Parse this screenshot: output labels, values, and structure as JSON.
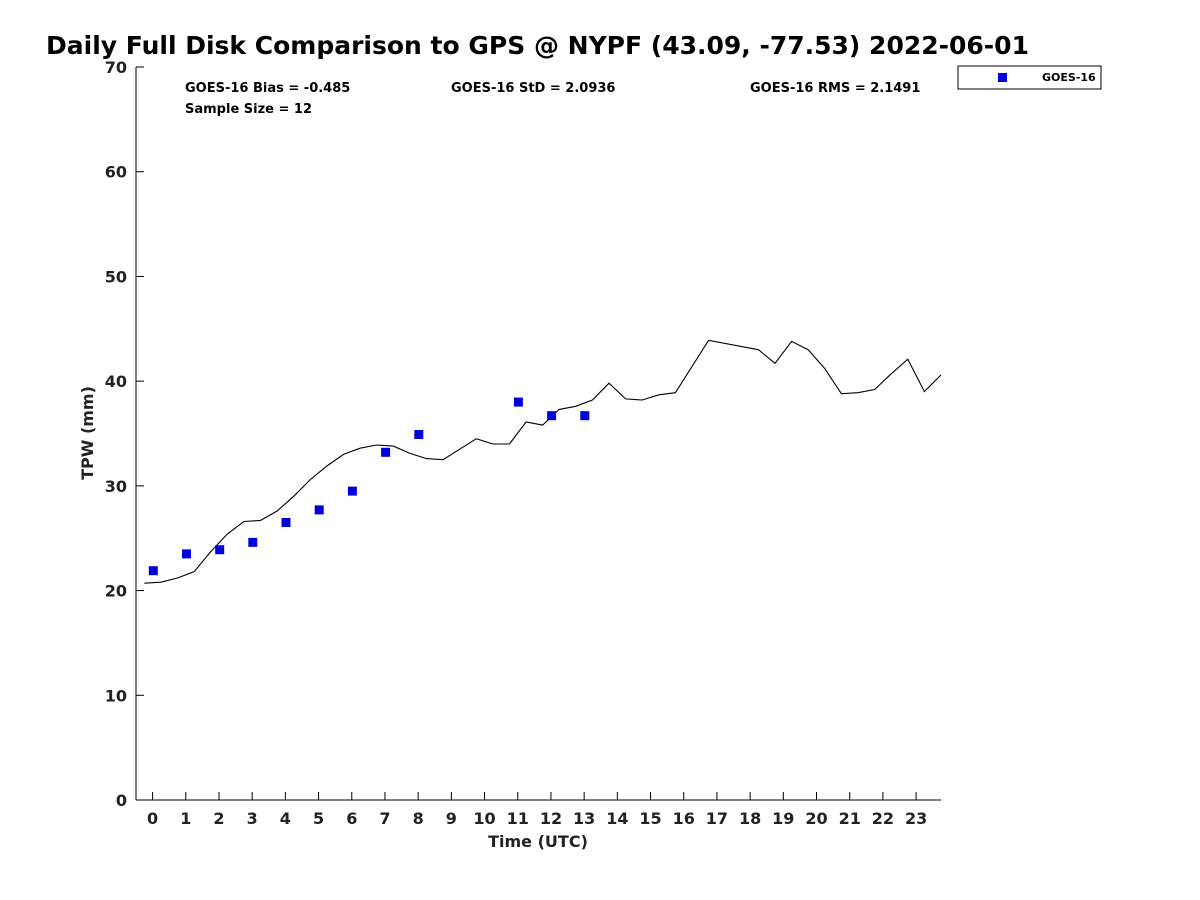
{
  "chart_data": {
    "type": "scatter",
    "title": "Daily Full Disk Comparison to GPS @ NYPF (43.09, -77.53) 2022-06-01",
    "xlabel": "Time (UTC)",
    "ylabel": "TPW (mm)",
    "xlim": [
      -0.5,
      23.75
    ],
    "ylim": [
      0,
      70
    ],
    "x_ticks": [
      0,
      1,
      2,
      3,
      4,
      5,
      6,
      7,
      8,
      9,
      10,
      11,
      12,
      13,
      14,
      15,
      16,
      17,
      18,
      19,
      20,
      21,
      22,
      23
    ],
    "y_ticks": [
      0,
      10,
      20,
      30,
      40,
      50,
      60,
      70
    ],
    "grid": false,
    "legend_position": "top-right-outside",
    "stats": {
      "bias": "GOES-16 Bias = -0.485",
      "std": "GOES-16 StD = 2.0936",
      "rms": "GOES-16 RMS = 2.1491",
      "sample_size": "Sample Size = 12"
    },
    "series": [
      {
        "name": "GOES-16",
        "kind": "scatter",
        "marker": "square",
        "color": "#0000dd",
        "x": [
          0.02,
          1.02,
          2.02,
          3.02,
          4.02,
          5.02,
          6.02,
          7.02,
          8.02,
          11.02,
          12.02,
          13.02
        ],
        "y": [
          21.9,
          23.5,
          23.9,
          24.6,
          26.5,
          27.7,
          29.5,
          33.2,
          34.9,
          38.0,
          36.7,
          36.7
        ]
      },
      {
        "kind": "line",
        "color": "#000000",
        "x": [
          -0.25,
          0.25,
          0.75,
          1.25,
          1.75,
          2.25,
          2.75,
          3.25,
          3.75,
          4.25,
          4.75,
          5.25,
          5.75,
          6.25,
          6.75,
          7.25,
          7.75,
          8.25,
          8.75,
          9.25,
          9.75,
          10.25,
          10.75,
          11.25,
          11.75,
          12.25,
          12.75,
          13.25,
          13.75,
          14.25,
          14.75,
          15.25,
          15.75,
          16.75,
          18.25,
          18.75,
          19.25,
          19.75,
          20.25,
          20.75,
          21.25,
          21.75,
          22.25,
          22.75,
          23.25,
          23.75
        ],
        "y": [
          20.7,
          20.8,
          21.2,
          21.8,
          23.7,
          25.4,
          26.6,
          26.7,
          27.6,
          29.0,
          30.6,
          31.9,
          33.0,
          33.6,
          33.9,
          33.8,
          33.1,
          32.6,
          32.5,
          33.5,
          34.5,
          34.0,
          34.0,
          36.1,
          35.8,
          37.3,
          37.6,
          38.2,
          39.8,
          38.3,
          38.2,
          38.7,
          38.9,
          43.9,
          43.0,
          41.7,
          43.8,
          43.0,
          41.2,
          38.8,
          38.9,
          39.2,
          40.7,
          42.1,
          39.0,
          40.6
        ]
      }
    ]
  }
}
